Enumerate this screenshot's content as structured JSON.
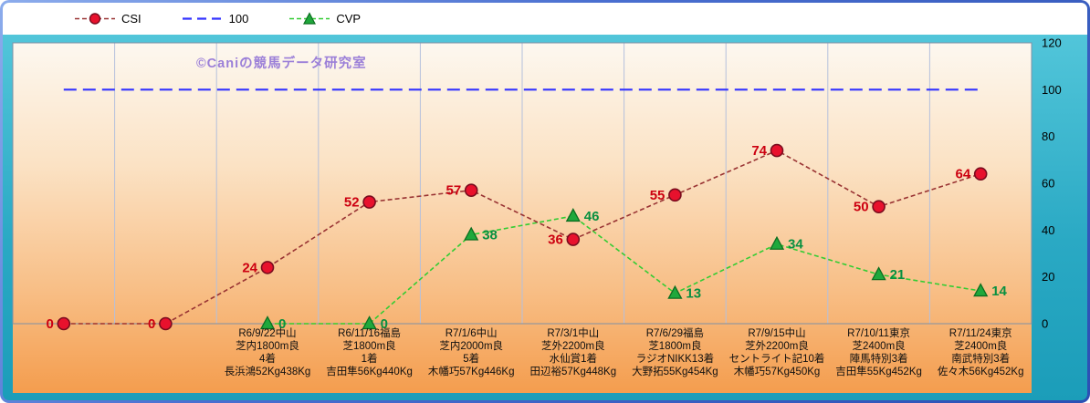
{
  "watermark": "©Caniの競馬データ研究室",
  "legend": {
    "items": [
      {
        "label": "CSI",
        "marker": "circle",
        "line_color": "#993333",
        "marker_fill": "#e8112d",
        "marker_stroke": "#7a0c1e"
      },
      {
        "label": "100",
        "marker": "line",
        "line_color": "#3333ff"
      },
      {
        "label": "CVP",
        "marker": "triangle",
        "line_color": "#33cc33",
        "marker_fill": "#1fa83c",
        "marker_stroke": "#0c6e20"
      }
    ]
  },
  "chart_data": {
    "type": "line",
    "ylim": [
      0,
      120
    ],
    "yticks": [
      0,
      20,
      40,
      60,
      80,
      100,
      120
    ],
    "legend_position": "top",
    "grid": "vertical",
    "categories": [
      [],
      [],
      [
        "R6/9/22中山",
        "芝内1800m良",
        "4着",
        "長浜鴻52Kg438Kg"
      ],
      [
        "R6/11/16福島",
        "芝1800m良",
        "1着",
        "吉田隼56Kg440Kg"
      ],
      [
        "R7/1/6中山",
        "芝内2000m良",
        "5着",
        "木幡巧57Kg446Kg"
      ],
      [
        "R7/3/1中山",
        "芝外2200m良",
        "水仙賞1着",
        "田辺裕57Kg448Kg"
      ],
      [
        "R7/6/29福島",
        "芝1800m良",
        "ラジオNIKK13着",
        "大野拓55Kg454Kg"
      ],
      [
        "R7/9/15中山",
        "芝外2200m良",
        "セントライト記10着",
        "木幡巧57Kg450Kg"
      ],
      [
        "R7/10/11東京",
        "芝2400m良",
        "陣馬特別3着",
        "吉田隼55Kg452Kg"
      ],
      [
        "R7/11/24東京",
        "芝2400m良",
        "南武特別3着",
        "佐々木56Kg452Kg"
      ]
    ],
    "series": [
      {
        "name": "CSI",
        "marker": "circle",
        "values": [
          0,
          0,
          24,
          52,
          57,
          36,
          55,
          74,
          50,
          64
        ],
        "line_color": "#993333",
        "marker_fill": "#e8112d",
        "marker_stroke": "#7a0c1e",
        "label_color": "#cc0010",
        "show_labels": true
      },
      {
        "name": "100",
        "marker": "none",
        "values": [
          100,
          100,
          100,
          100,
          100,
          100,
          100,
          100,
          100,
          100
        ],
        "line_color": "#3333ff",
        "show_labels": false
      },
      {
        "name": "CVP",
        "marker": "triangle",
        "values": [
          null,
          null,
          0,
          0,
          38,
          46,
          13,
          34,
          21,
          14
        ],
        "line_color": "#33cc33",
        "marker_fill": "#1fa83c",
        "marker_stroke": "#0c6e20",
        "label_color": "#089040",
        "show_labels": true
      }
    ]
  },
  "theme": {
    "frame_gradient": [
      "#8cacec",
      "#2c50b4"
    ],
    "canvas_gradient": [
      "#58cadd",
      "#1b9db9"
    ],
    "plot_gradient": [
      "#fdf8f0",
      "#fbe2c4",
      "#f8bf87",
      "#f49d4e"
    ],
    "grid_color": "#b4c0dc",
    "plot_border": "#8090a4",
    "tick_color": "#000000",
    "category_color": "#101010",
    "watermark_color": "#9b7fd8"
  }
}
